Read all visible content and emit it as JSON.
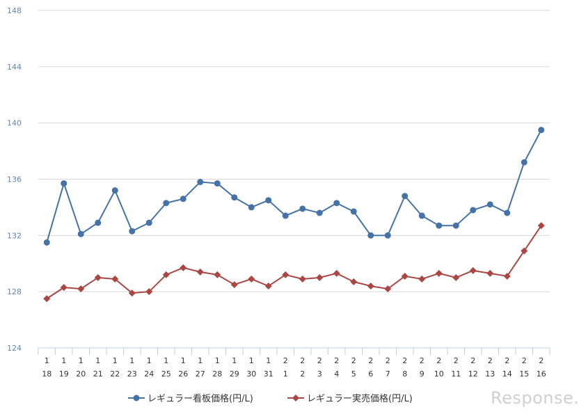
{
  "chart_data": {
    "type": "line",
    "categories": [
      [
        "1",
        "18"
      ],
      [
        "1",
        "19"
      ],
      [
        "1",
        "20"
      ],
      [
        "1",
        "21"
      ],
      [
        "1",
        "22"
      ],
      [
        "1",
        "23"
      ],
      [
        "1",
        "24"
      ],
      [
        "1",
        "25"
      ],
      [
        "1",
        "26"
      ],
      [
        "1",
        "27"
      ],
      [
        "1",
        "28"
      ],
      [
        "1",
        "29"
      ],
      [
        "1",
        "30"
      ],
      [
        "1",
        "31"
      ],
      [
        "2",
        "1"
      ],
      [
        "2",
        "2"
      ],
      [
        "2",
        "3"
      ],
      [
        "2",
        "4"
      ],
      [
        "2",
        "5"
      ],
      [
        "2",
        "6"
      ],
      [
        "2",
        "7"
      ],
      [
        "2",
        "8"
      ],
      [
        "2",
        "9"
      ],
      [
        "2",
        "10"
      ],
      [
        "2",
        "11"
      ],
      [
        "2",
        "12"
      ],
      [
        "2",
        "13"
      ],
      [
        "2",
        "14"
      ],
      [
        "2",
        "15"
      ],
      [
        "2",
        "16"
      ]
    ],
    "ylim": [
      124,
      148
    ],
    "yticks": [
      124,
      128,
      132,
      136,
      140,
      144,
      148
    ],
    "grid": true,
    "legend_position": "bottom",
    "series": [
      {
        "name": "レギュラー看板価格(円/L)",
        "color": "#4572a7",
        "marker": "circle",
        "values": [
          131.5,
          135.7,
          132.1,
          132.9,
          135.2,
          132.3,
          132.9,
          134.3,
          134.6,
          135.8,
          135.7,
          134.7,
          134.0,
          134.5,
          133.4,
          133.9,
          133.6,
          134.3,
          133.7,
          132.0,
          132.0,
          134.8,
          133.4,
          132.7,
          132.7,
          133.8,
          134.2,
          133.6,
          137.2,
          139.5
        ]
      },
      {
        "name": "レギュラー実売価格(円/L)",
        "color": "#aa4643",
        "marker": "diamond",
        "values": [
          127.5,
          128.3,
          128.2,
          129.0,
          128.9,
          127.9,
          128.0,
          129.2,
          129.7,
          129.4,
          129.2,
          128.5,
          128.9,
          128.4,
          129.2,
          128.9,
          129.0,
          129.3,
          128.7,
          128.4,
          128.2,
          129.1,
          128.9,
          129.3,
          129.0,
          129.5,
          129.3,
          129.1,
          130.9,
          132.7
        ]
      }
    ]
  },
  "watermark": "Response."
}
